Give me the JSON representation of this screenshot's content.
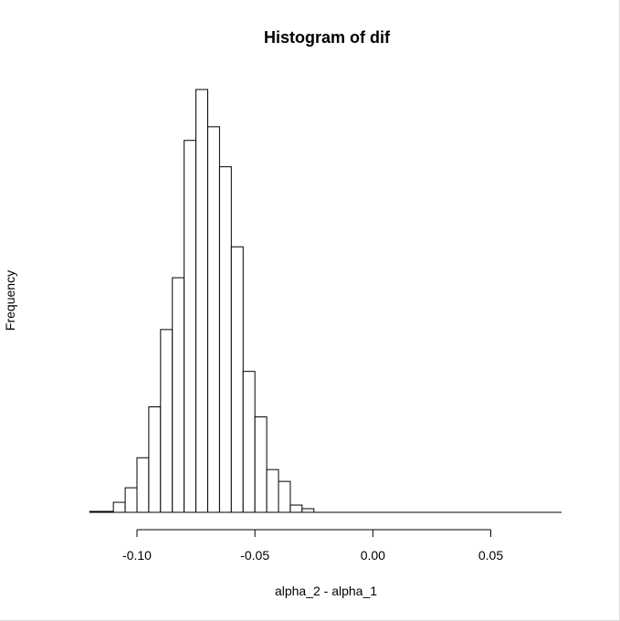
{
  "chart_data": {
    "type": "bar",
    "title": "Histogram of dif",
    "xlabel": "alpha_2 - alpha_1",
    "ylabel": "Frequency",
    "bin_width": 0.005,
    "bins": [
      {
        "start": -0.12,
        "end": -0.115,
        "count": 1
      },
      {
        "start": -0.115,
        "end": -0.11,
        "count": 1
      },
      {
        "start": -0.11,
        "end": -0.105,
        "count": 11
      },
      {
        "start": -0.105,
        "end": -0.1,
        "count": 27
      },
      {
        "start": -0.1,
        "end": -0.095,
        "count": 60
      },
      {
        "start": -0.095,
        "end": -0.09,
        "count": 116
      },
      {
        "start": -0.09,
        "end": -0.085,
        "count": 201
      },
      {
        "start": -0.085,
        "end": -0.08,
        "count": 258
      },
      {
        "start": -0.08,
        "end": -0.075,
        "count": 409
      },
      {
        "start": -0.075,
        "end": -0.07,
        "count": 465
      },
      {
        "start": -0.07,
        "end": -0.065,
        "count": 424
      },
      {
        "start": -0.065,
        "end": -0.06,
        "count": 380
      },
      {
        "start": -0.06,
        "end": -0.055,
        "count": 292
      },
      {
        "start": -0.055,
        "end": -0.05,
        "count": 155
      },
      {
        "start": -0.05,
        "end": -0.045,
        "count": 105
      },
      {
        "start": -0.045,
        "end": -0.04,
        "count": 47
      },
      {
        "start": -0.04,
        "end": -0.035,
        "count": 34
      },
      {
        "start": -0.035,
        "end": -0.03,
        "count": 8
      },
      {
        "start": -0.03,
        "end": -0.025,
        "count": 4
      }
    ],
    "xlim": [
      -0.12,
      0.08
    ],
    "x_ticks": [
      -0.1,
      -0.05,
      0.0,
      0.05
    ],
    "x_tick_labels": [
      "-0.10",
      "-0.05",
      "0.00",
      "0.05"
    ],
    "ylim": [
      0,
      465
    ],
    "y_axis_shown": false,
    "grid": false
  }
}
